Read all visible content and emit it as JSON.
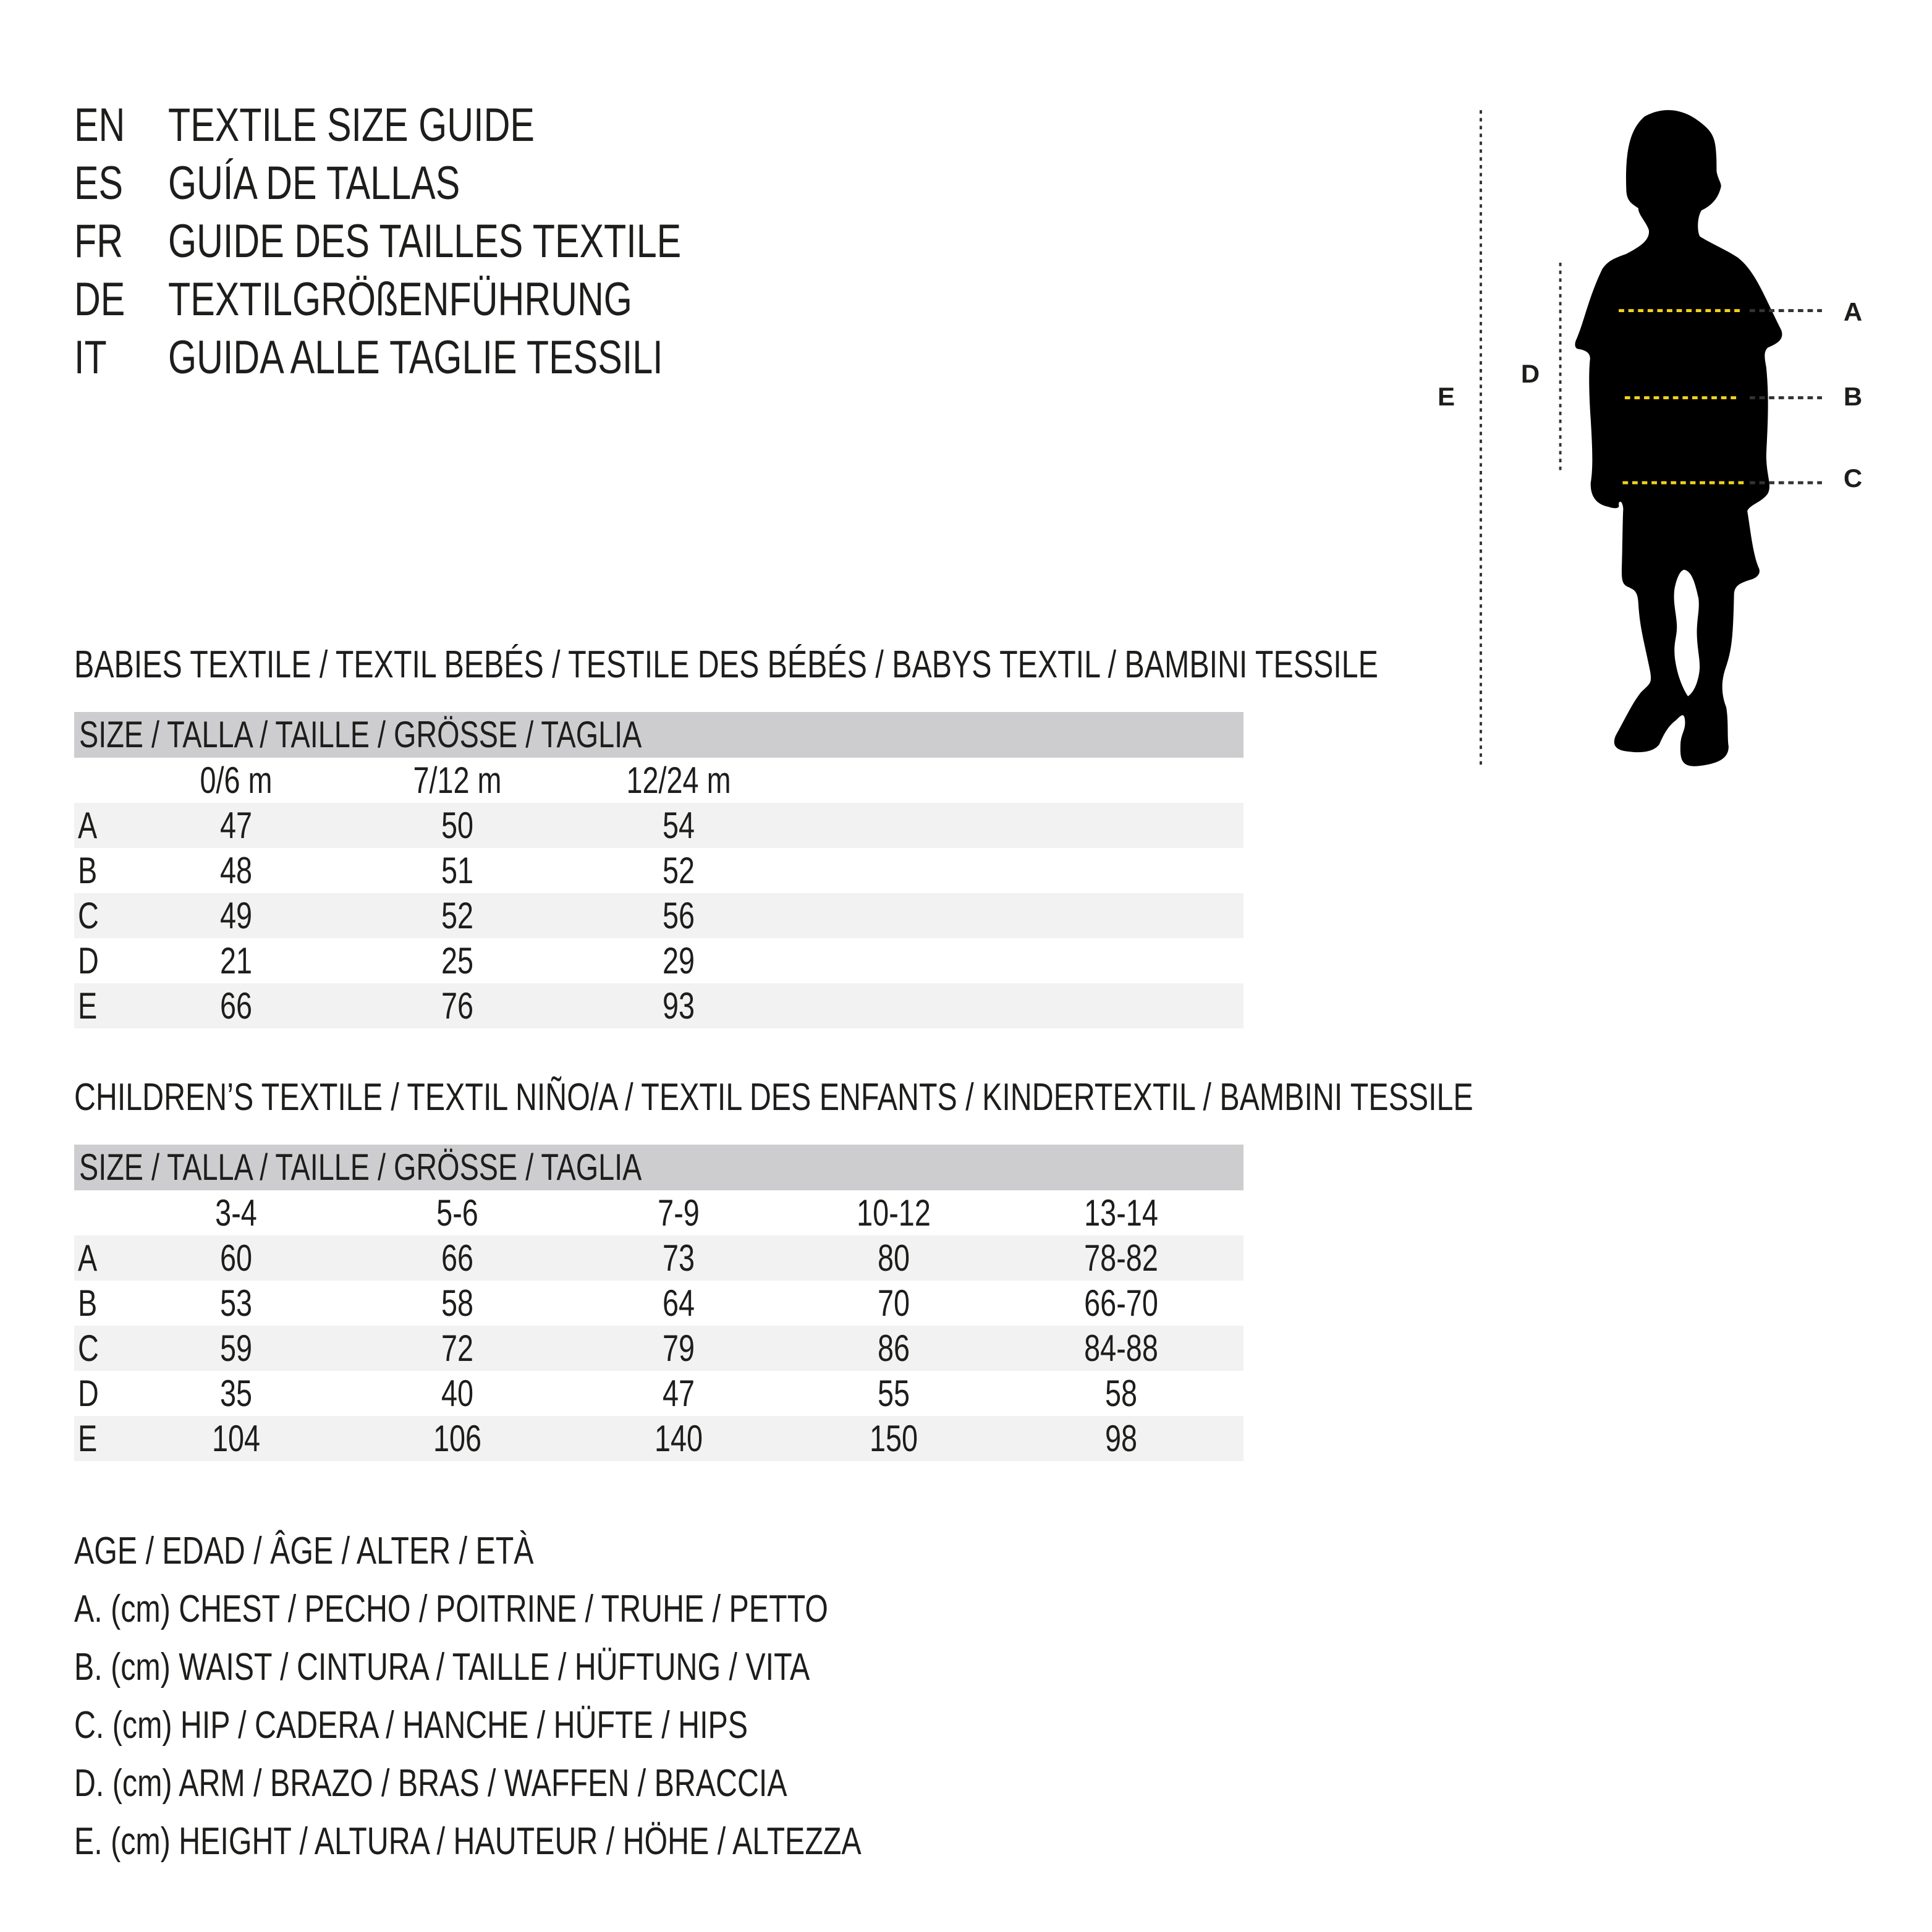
{
  "titles": [
    {
      "code": "EN",
      "text": "TEXTILE SIZE GUIDE"
    },
    {
      "code": "ES",
      "text": "GUÍA DE TALLAS"
    },
    {
      "code": "FR",
      "text": "GUIDE DES TAILLES TEXTILE"
    },
    {
      "code": "DE",
      "text": "TEXTILGRÖßENFÜHRUNG"
    },
    {
      "code": "IT",
      "text": "GUIDA ALLE TAGLIE TESSILI"
    }
  ],
  "figure": {
    "labels": {
      "a": "A",
      "b": "B",
      "c": "C",
      "d": "D",
      "e": "E"
    },
    "accent_color": "#f2d21b"
  },
  "babies": {
    "title": "BABIES TEXTILE / TEXTIL BEBÉS / TESTILE DES BÉBÉS / BABYS TEXTIL / BAMBINI TESSILE",
    "header": "SIZE / TALLA / TAILLE / GRÖSSE / TAGLIA",
    "columns": [
      "0/6 m",
      "7/12 m",
      "12/24 m"
    ],
    "rows": [
      {
        "label": "A",
        "values": [
          "47",
          "50",
          "54"
        ]
      },
      {
        "label": "B",
        "values": [
          "48",
          "51",
          "52"
        ]
      },
      {
        "label": "C",
        "values": [
          "49",
          "52",
          "56"
        ]
      },
      {
        "label": "D",
        "values": [
          "21",
          "25",
          "29"
        ]
      },
      {
        "label": "E",
        "values": [
          "66",
          "76",
          "93"
        ]
      }
    ]
  },
  "children": {
    "title": "CHILDREN’S TEXTILE / TEXTIL NIÑO/A / TEXTIL DES ENFANTS / KINDERTEXTIL / BAMBINI TESSILE",
    "header": "SIZE / TALLA / TAILLE / GRÖSSE / TAGLIA",
    "columns": [
      "3-4",
      "5-6",
      "7-9",
      "10-12",
      "13-14"
    ],
    "rows": [
      {
        "label": "A",
        "values": [
          "60",
          "66",
          "73",
          "80",
          "78-82"
        ]
      },
      {
        "label": "B",
        "values": [
          "53",
          "58",
          "64",
          "70",
          "66-70"
        ]
      },
      {
        "label": "C",
        "values": [
          "59",
          "72",
          "79",
          "86",
          "84-88"
        ]
      },
      {
        "label": "D",
        "values": [
          "35",
          "40",
          "47",
          "55",
          "58"
        ]
      },
      {
        "label": "E",
        "values": [
          "104",
          "106",
          "140",
          "150",
          "98"
        ]
      }
    ]
  },
  "legend": [
    "AGE / EDAD / ÂGE / ALTER / ETÀ",
    "A. (cm) CHEST / PECHO / POITRINE / TRUHE / PETTO",
    "B. (cm) WAIST / CINTURA / TAILLE / HÜFTUNG / VITA",
    "C. (cm) HIP / CADERA / HANCHE / HÜFTE / HIPS",
    "D. (cm) ARM / BRAZO / BRAS / WAFFEN / BRACCIA",
    "E. (cm) HEIGHT / ALTURA / HAUTEUR / HÖHE / ALTEZZA"
  ]
}
